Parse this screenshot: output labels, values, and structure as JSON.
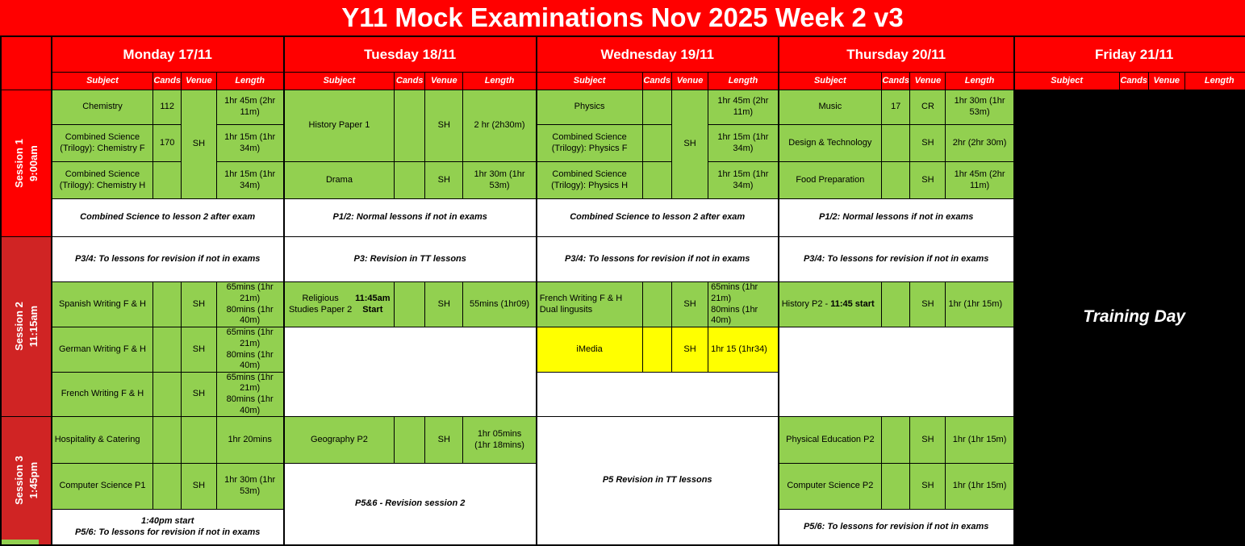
{
  "title": "Y11 Mock Examinations Nov 2025  Week 2 v3",
  "colors": {
    "header_red": "#ff0000",
    "session_label_red": "#d02424",
    "exam_green": "#92d050",
    "highlight_yellow": "#ffff00",
    "training_day_black": "#000000"
  },
  "column_headers": [
    "Subject",
    "Cands",
    "Venue",
    "Length"
  ],
  "sessions": [
    {
      "label": "Session 1",
      "time": "9:00am"
    },
    {
      "label": "Session 2",
      "time": "11:15am"
    },
    {
      "label": "Session 3",
      "time": "1:45pm"
    }
  ],
  "days": [
    {
      "name": "Monday 17/11",
      "s1": {
        "venue": "SH",
        "rows": [
          {
            "subject": "Chemistry",
            "cands": "112",
            "length": "1hr 45m (2hr 11m)"
          },
          {
            "subject": "Combined Science (Trilogy): Chemistry F",
            "cands": "170",
            "length": "1hr 15m (1hr 34m)"
          },
          {
            "subject": "Combined Science (Trilogy): Chemistry H",
            "cands": "",
            "length": "1hr 15m (1hr 34m)"
          }
        ],
        "note": "Combined Science to lesson 2 after exam"
      },
      "s2": {
        "note": "P3/4: To lessons for revision if not in exams",
        "rows": [
          {
            "subject": "Spanish Writing F & H",
            "venue": "SH",
            "length": "65mins (1hr 21m)\n80mins (1hr 40m)"
          },
          {
            "subject": "German Writing  F & H",
            "venue": "SH",
            "length": "65mins (1hr 21m)\n80mins (1hr 40m)"
          },
          {
            "subject": "French Writing  F & H",
            "venue": "SH",
            "length": "65mins (1hr 21m)\n80mins (1hr 40m)"
          }
        ]
      },
      "s3": {
        "rows": [
          {
            "subject": "Hospitality & Catering",
            "venue": "",
            "length": "1hr 20mins"
          },
          {
            "subject": "Computer Science P1",
            "venue": "SH",
            "length": "1hr 30m (1hr 53m)"
          }
        ],
        "note": "1:40pm start\nP5/6: To lessons for revision if not in exams"
      }
    },
    {
      "name": "Tuesday 18/11",
      "s1": {
        "block": {
          "subject": "History Paper 1",
          "venue": "SH",
          "length": "2 hr (2h30m)"
        },
        "row3": {
          "subject": "Drama",
          "venue": "SH",
          "length": "1hr 30m (1hr 53m)"
        },
        "note": "P1/2: Normal lessons if not in exams"
      },
      "s2": {
        "note": "P3: Revision in TT lessons",
        "row": {
          "subject": "Religious Studies Paper 2 ",
          "subject_bold": "11:45am Start",
          "venue": "SH",
          "length": "55mins (1hr09)"
        }
      },
      "s3": {
        "row": {
          "subject": "Geography P2",
          "venue": "SH",
          "length": "1hr 05mins\n(1hr 18mins)"
        },
        "note": "P5&6 - Revision session 2"
      }
    },
    {
      "name": "Wednesday 19/11",
      "s1": {
        "venue": "SH",
        "rows": [
          {
            "subject": "Physics",
            "cands": "",
            "length": "1hr 45m (2hr 11m)"
          },
          {
            "subject": "Combined Science (Trilogy): Physics F",
            "cands": "",
            "length": "1hr 15m (1hr 34m)"
          },
          {
            "subject": "Combined Science (Trilogy): Physics H",
            "cands": "",
            "length": "1hr 15m (1hr 34m)"
          }
        ],
        "note": "Combined Science to lesson 2 after exam"
      },
      "s2": {
        "note": "P3/4: To lessons for revision if not in exams",
        "row_french": {
          "subject": "French Writing F & H\nDual lingusits",
          "venue": "SH",
          "length": "65mins (1hr 21m)\n80mins (1hr 40m)"
        },
        "row_imedia": {
          "subject": "iMedia",
          "venue": "SH",
          "length": "1hr 15 (1hr34)"
        }
      },
      "s3": {
        "note": "P5 Revision in TT lessons"
      }
    },
    {
      "name": "Thursday 20/11",
      "s1": {
        "rows": [
          {
            "subject": "Music",
            "cands": "17",
            "venue": "CR",
            "length": "1hr 30m (1hr 53m)"
          },
          {
            "subject": "Design & Technology",
            "cands": "",
            "venue": "SH",
            "length": "2hr (2hr 30m)"
          },
          {
            "subject": "Food Preparation",
            "cands": "",
            "venue": "SH",
            "length": "1hr 45m (2hr 11m)"
          }
        ],
        "note": "P1/2: Normal lessons if not in exams"
      },
      "s2": {
        "note": "P3/4: To lessons for revision if not in exams",
        "row": {
          "subject": "History P2  - ",
          "subject_bold": "11:45 start",
          "venue": "SH",
          "length": "1hr (1hr 15m)"
        }
      },
      "s3": {
        "rows": [
          {
            "subject": "Physical Education P2",
            "venue": "SH",
            "length": "1hr  (1hr 15m)"
          },
          {
            "subject": "Computer Science P2",
            "venue": "SH",
            "length": "1hr  (1hr 15m)"
          }
        ],
        "note": "P5/6: To lessons for revision if not in exams"
      }
    },
    {
      "name": "Friday 21/11",
      "body": "Training Day"
    }
  ]
}
